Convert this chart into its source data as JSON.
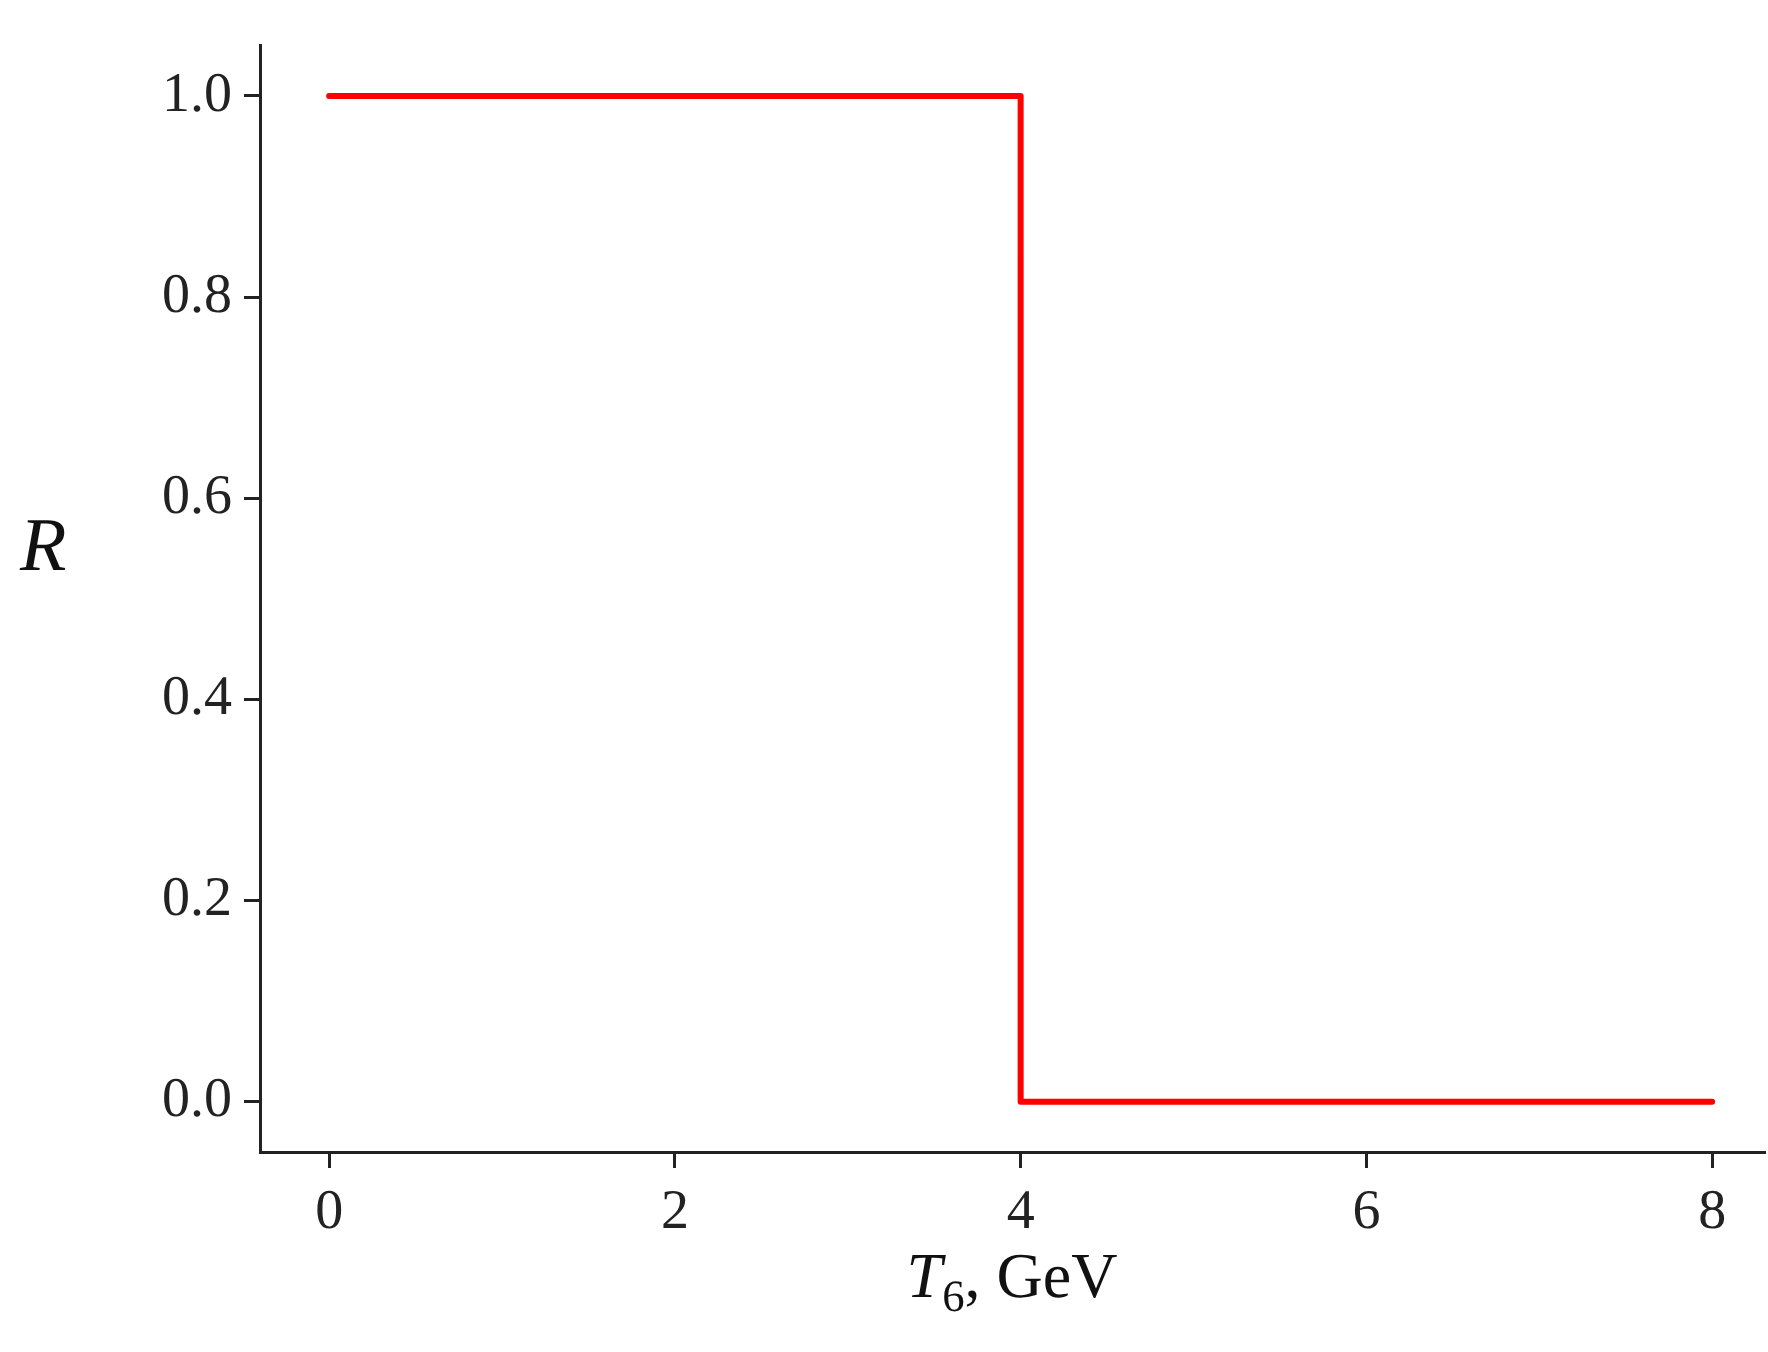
{
  "chart_data": {
    "type": "line",
    "xlabel": "T$_{6}$, GeV",
    "ylabel": "R",
    "x": [
      0,
      4,
      4,
      8
    ],
    "series": [
      {
        "color": "#ff0000",
        "values": [
          1,
          1,
          0,
          0
        ]
      }
    ],
    "xlim": [
      -0.4,
      8.3
    ],
    "xticks": [
      0,
      2,
      4,
      6,
      8
    ],
    "ylim": [
      -0.05,
      1.05
    ],
    "yticks": [
      {
        "value": 0,
        "label": "0.0"
      },
      {
        "value": 0.2,
        "label": "0.2"
      },
      {
        "value": 0.4,
        "label": "0.4"
      },
      {
        "value": 0.6,
        "label": "0.6"
      },
      {
        "value": 0.8,
        "label": "0.8"
      },
      {
        "value": 1,
        "label": "1.0"
      }
    ],
    "grid": false,
    "legend": false,
    "marker": "none",
    "line_style": "solid"
  }
}
